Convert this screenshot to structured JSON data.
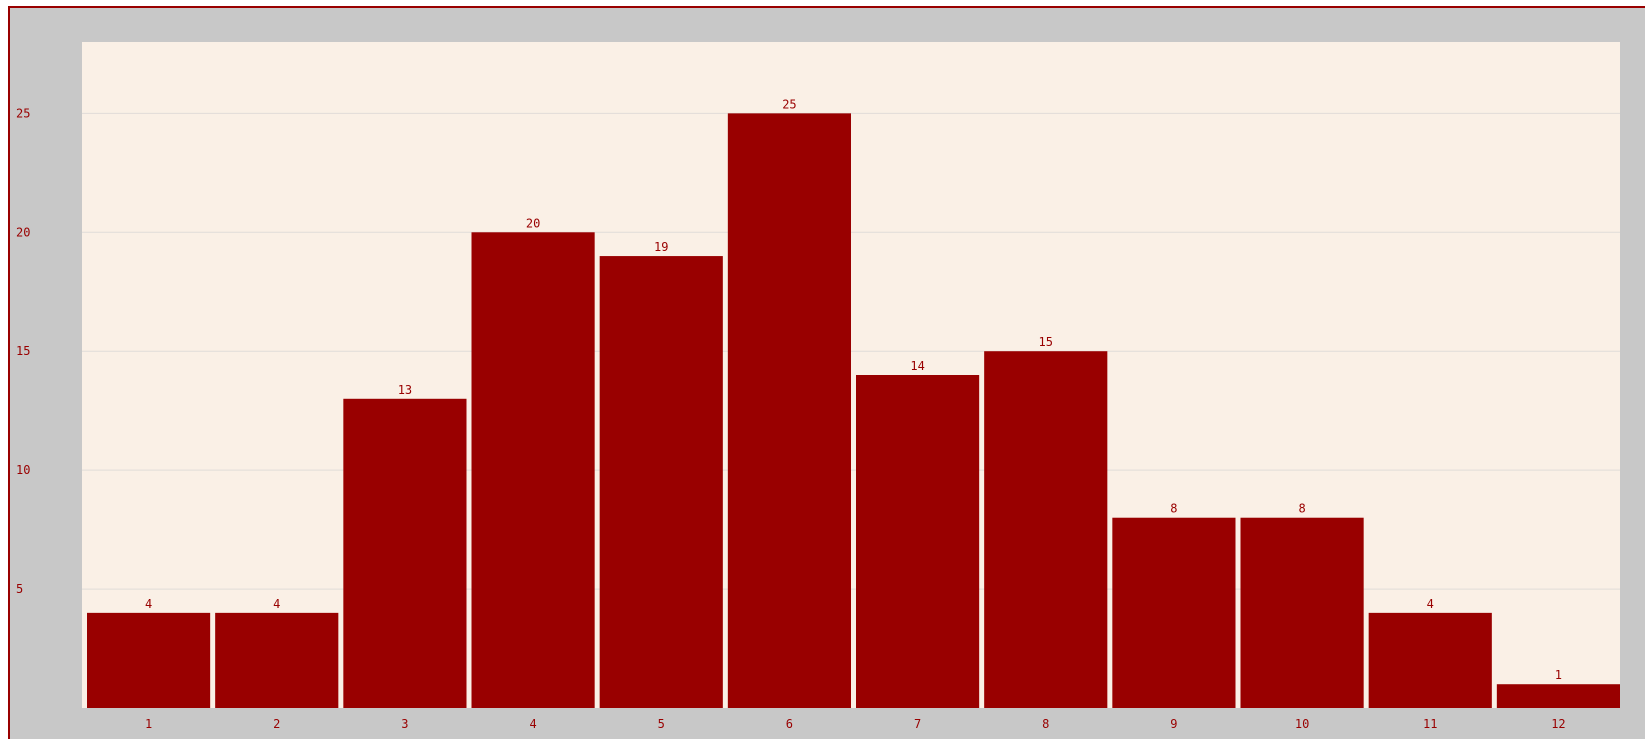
{
  "chart_data": {
    "type": "bar",
    "categories": [
      "1",
      "2",
      "3",
      "4",
      "5",
      "6",
      "7",
      "8",
      "9",
      "10",
      "11",
      "12"
    ],
    "values": [
      4,
      4,
      13,
      20,
      19,
      25,
      14,
      15,
      8,
      8,
      4,
      1
    ],
    "y_ticks": [
      "5",
      "10",
      "15",
      "20",
      "25"
    ],
    "ylim": [
      0,
      28
    ],
    "title": "",
    "xlabel": "",
    "ylabel": "",
    "grid": true,
    "colors": {
      "bar": "#990000",
      "plot_background": "#faf0e6",
      "frame_background": "#c8c8c8",
      "gridline": "#e0dcd8",
      "text": "#990000"
    }
  }
}
